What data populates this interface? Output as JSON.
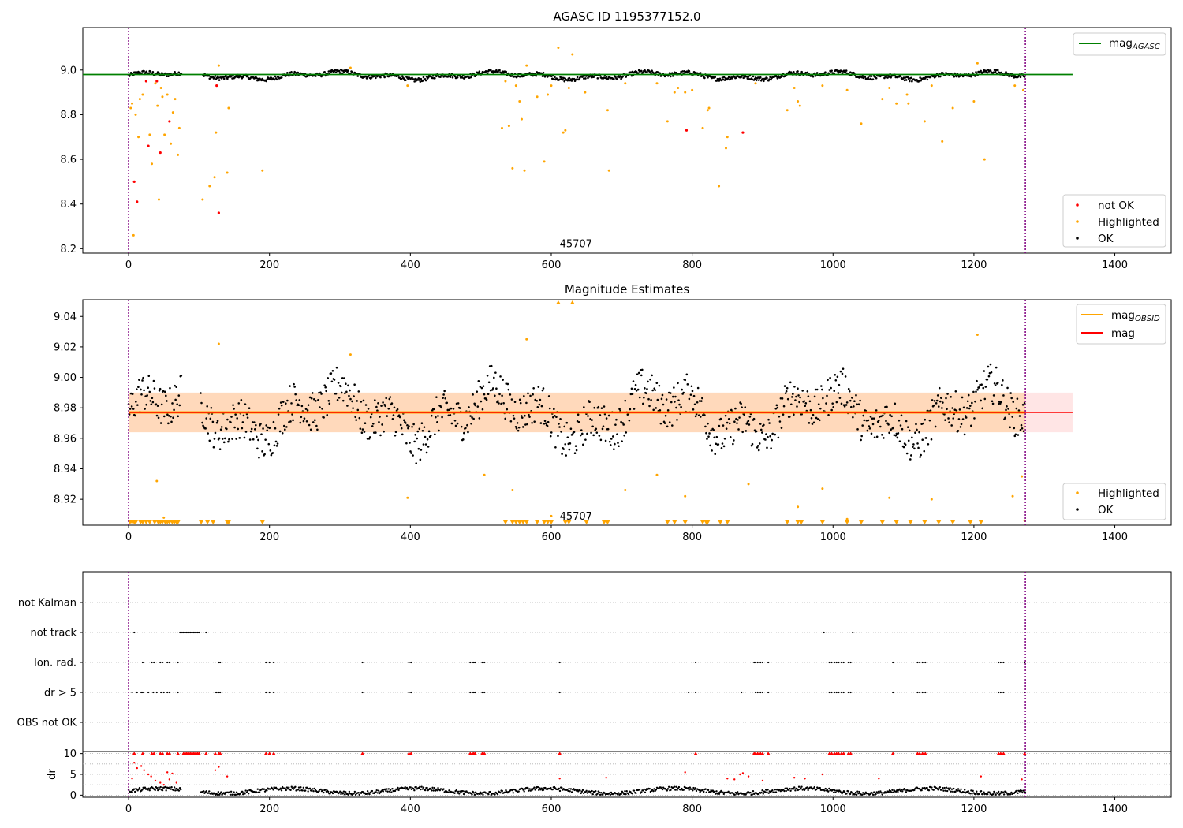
{
  "chart_data": [
    {
      "type": "scatter",
      "title": "AGASC ID 1195377152.0",
      "xlim": [
        -65,
        1480
      ],
      "ylim": [
        8.18,
        9.19
      ],
      "xticks": [
        0,
        200,
        400,
        600,
        800,
        1000,
        1200,
        1400
      ],
      "yticks": [
        8.2,
        8.4,
        8.6,
        8.8,
        9.0
      ],
      "ytick_labels": [
        "8.2",
        "8.4",
        "8.6",
        "8.8",
        "9.0"
      ],
      "vlines": [
        0,
        1273
      ],
      "obs_label": "45707",
      "obs_label_pos": [
        635,
        8.2
      ],
      "mag_agasc": 8.98,
      "mag_agasc_x": [
        -65,
        1340
      ],
      "legend_upper": {
        "label": "mag",
        "subscript": "AGASC",
        "color": "#008000"
      },
      "legend_lower": [
        {
          "label": "not OK",
          "color": "#ff0000"
        },
        {
          "label": "Highlighted",
          "color": "#ffa500"
        },
        {
          "label": "OK",
          "color": "#000000"
        }
      ],
      "series": [
        {
          "name": "not OK",
          "color": "#ff0000",
          "points": [
            [
              8,
              8.5
            ],
            [
              12,
              8.41
            ],
            [
              25,
              8.95
            ],
            [
              28,
              8.66
            ],
            [
              40,
              8.95
            ],
            [
              45,
              8.63
            ],
            [
              58,
              8.77
            ],
            [
              125,
              8.93
            ],
            [
              128,
              8.36
            ],
            [
              792,
              8.73
            ],
            [
              872,
              8.72
            ]
          ]
        },
        {
          "name": "Highlighted",
          "color": "#ffa500",
          "points": [
            [
              3,
              8.83
            ],
            [
              5,
              8.85
            ],
            [
              7,
              8.26
            ],
            [
              10,
              8.8
            ],
            [
              14,
              8.7
            ],
            [
              16,
              8.87
            ],
            [
              20,
              8.89
            ],
            [
              30,
              8.71
            ],
            [
              33,
              8.58
            ],
            [
              38,
              8.94
            ],
            [
              41,
              8.84
            ],
            [
              43,
              8.42
            ],
            [
              46,
              8.92
            ],
            [
              48,
              8.88
            ],
            [
              51,
              8.71
            ],
            [
              55,
              8.89
            ],
            [
              60,
              8.67
            ],
            [
              63,
              8.81
            ],
            [
              66,
              8.87
            ],
            [
              70,
              8.62
            ],
            [
              72,
              8.74
            ],
            [
              105,
              8.42
            ],
            [
              115,
              8.48
            ],
            [
              122,
              8.52
            ],
            [
              124,
              8.72
            ],
            [
              128,
              9.02
            ],
            [
              140,
              8.54
            ],
            [
              142,
              8.83
            ],
            [
              190,
              8.55
            ],
            [
              315,
              9.01
            ],
            [
              396,
              8.93
            ],
            [
              530,
              8.74
            ],
            [
              535,
              8.95
            ],
            [
              540,
              8.75
            ],
            [
              545,
              8.56
            ],
            [
              550,
              8.93
            ],
            [
              555,
              8.86
            ],
            [
              558,
              8.78
            ],
            [
              562,
              8.55
            ],
            [
              565,
              9.02
            ],
            [
              580,
              8.88
            ],
            [
              590,
              8.59
            ],
            [
              595,
              8.89
            ],
            [
              600,
              8.93
            ],
            [
              610,
              9.1
            ],
            [
              617,
              8.72
            ],
            [
              620,
              8.73
            ],
            [
              625,
              8.92
            ],
            [
              630,
              9.07
            ],
            [
              648,
              8.9
            ],
            [
              680,
              8.82
            ],
            [
              682,
              8.55
            ],
            [
              705,
              8.94
            ],
            [
              750,
              8.94
            ],
            [
              765,
              8.77
            ],
            [
              775,
              8.9
            ],
            [
              780,
              8.92
            ],
            [
              790,
              8.9
            ],
            [
              800,
              8.91
            ],
            [
              815,
              8.74
            ],
            [
              822,
              8.82
            ],
            [
              824,
              8.83
            ],
            [
              838,
              8.48
            ],
            [
              848,
              8.65
            ],
            [
              850,
              8.7
            ],
            [
              890,
              8.94
            ],
            [
              935,
              8.82
            ],
            [
              945,
              8.92
            ],
            [
              950,
              8.86
            ],
            [
              953,
              8.84
            ],
            [
              985,
              8.93
            ],
            [
              1020,
              8.91
            ],
            [
              1040,
              8.76
            ],
            [
              1070,
              8.87
            ],
            [
              1080,
              8.92
            ],
            [
              1090,
              8.85
            ],
            [
              1105,
              8.89
            ],
            [
              1107,
              8.85
            ],
            [
              1130,
              8.77
            ],
            [
              1140,
              8.93
            ],
            [
              1155,
              8.68
            ],
            [
              1170,
              8.83
            ],
            [
              1200,
              8.86
            ],
            [
              1205,
              9.03
            ],
            [
              1215,
              8.6
            ],
            [
              1258,
              8.93
            ],
            [
              1270,
              8.91
            ]
          ]
        },
        {
          "name": "OK",
          "color": "#000000",
          "generated_band": [
            8.93,
            9.01
          ]
        }
      ]
    },
    {
      "type": "scatter",
      "title": "Magnitude Estimates",
      "xlim": [
        -65,
        1480
      ],
      "ylim": [
        8.903,
        9.051
      ],
      "xticks": [
        0,
        200,
        400,
        600,
        800,
        1000,
        1200,
        1400
      ],
      "yticks": [
        8.92,
        8.94,
        8.96,
        8.98,
        9.0,
        9.02,
        9.04
      ],
      "ytick_labels": [
        "8.92",
        "8.94",
        "8.96",
        "8.98",
        "9.00",
        "9.02",
        "9.04"
      ],
      "vlines": [
        0,
        1273
      ],
      "obs_label": "45707",
      "obs_label_pos": [
        635,
        8.904
      ],
      "mag": 8.977,
      "mag_x": [
        0,
        1273
      ],
      "mag_obsid": 8.977,
      "band_inner": [
        8.964,
        8.99
      ],
      "band_inner_x": [
        0,
        1273
      ],
      "band_outer": [
        8.964,
        8.99
      ],
      "band_outer_x": [
        0,
        1340
      ],
      "legend_upper": [
        {
          "label": "mag",
          "subscript": "OBSID",
          "color": "#ffa500"
        },
        {
          "label": "mag",
          "subscript": "",
          "color": "#ff0000"
        }
      ],
      "legend_lower": [
        {
          "label": "Highlighted",
          "color": "#ffa500"
        },
        {
          "label": "OK",
          "color": "#000000"
        }
      ],
      "highlighted_points": [
        [
          40,
          8.932
        ],
        [
          50,
          8.908
        ],
        [
          128,
          9.022
        ],
        [
          315,
          9.015
        ],
        [
          396,
          8.921
        ],
        [
          505,
          8.936
        ],
        [
          545,
          8.926
        ],
        [
          565,
          9.025
        ],
        [
          600,
          8.909
        ],
        [
          705,
          8.926
        ],
        [
          750,
          8.936
        ],
        [
          790,
          8.922
        ],
        [
          880,
          8.93
        ],
        [
          950,
          8.915
        ],
        [
          985,
          8.927
        ],
        [
          1020,
          8.907
        ],
        [
          1080,
          8.921
        ],
        [
          1140,
          8.92
        ],
        [
          1205,
          9.028
        ],
        [
          1255,
          8.922
        ],
        [
          1268,
          8.935
        ],
        [
          1272,
          8.906
        ]
      ],
      "offscale_high": [
        610,
        630
      ],
      "offscale_low": [
        2,
        5,
        8,
        10,
        17,
        20,
        25,
        30,
        37,
        42,
        45,
        48,
        52,
        55,
        58,
        62,
        65,
        68,
        70,
        103,
        112,
        120,
        140,
        142,
        190,
        535,
        545,
        550,
        555,
        560,
        565,
        580,
        590,
        595,
        600,
        620,
        625,
        650,
        675,
        680,
        765,
        775,
        790,
        815,
        820,
        822,
        840,
        850,
        935,
        950,
        955,
        985,
        1020,
        1040,
        1070,
        1090,
        1110,
        1130,
        1150,
        1170,
        1195,
        1210
      ]
    },
    {
      "type": "scatter",
      "title": "",
      "xlim": [
        -65,
        1480
      ],
      "category_labels": [
        "not Kalman",
        "not track",
        "Ion. rad.",
        "dr > 5",
        "OBS not OK"
      ],
      "vlines": [
        0,
        1273
      ],
      "flags": {
        "not track": [
          8,
          73,
          76,
          78,
          80,
          82,
          84,
          86,
          88,
          90,
          92,
          94,
          96,
          98,
          100,
          110,
          987,
          1028
        ],
        "Ion. rad.": [
          20,
          33,
          36,
          45,
          48,
          55,
          58,
          70,
          128,
          130,
          195,
          200,
          206,
          332,
          398,
          401,
          485,
          488,
          490,
          492,
          502,
          505,
          612,
          805,
          888,
          890,
          893,
          897,
          900,
          908,
          995,
          998,
          1002,
          1005,
          1008,
          1012,
          1015,
          1022,
          1025,
          1085,
          1120,
          1123,
          1127,
          1131,
          1235,
          1238,
          1242,
          1272
        ],
        "dr > 5": [
          5,
          12,
          18,
          20,
          28,
          35,
          40,
          46,
          50,
          55,
          58,
          70,
          123,
          125,
          128,
          130,
          195,
          200,
          206,
          332,
          398,
          401,
          485,
          488,
          490,
          492,
          502,
          505,
          612,
          795,
          805,
          870,
          890,
          893,
          897,
          900,
          908,
          995,
          998,
          1002,
          1005,
          1008,
          1012,
          1015,
          1022,
          1025,
          1085,
          1120,
          1123,
          1127,
          1131,
          1235,
          1238,
          1242,
          1272
        ]
      }
    },
    {
      "type": "scatter",
      "title": "",
      "ylabel": "dr",
      "xlim": [
        -65,
        1480
      ],
      "ylim": [
        -0.5,
        10.5
      ],
      "xticks": [
        0,
        200,
        400,
        600,
        800,
        1000,
        1200,
        1400
      ],
      "yticks": [
        0,
        5,
        10
      ],
      "ytick_labels": [
        "0",
        "5",
        "10"
      ],
      "vlines": [
        0,
        1273
      ],
      "red_triangles": [
        8,
        20,
        33,
        36,
        45,
        48,
        55,
        58,
        70,
        78,
        80,
        82,
        84,
        86,
        88,
        90,
        92,
        94,
        96,
        98,
        100,
        110,
        123,
        128,
        130,
        195,
        200,
        206,
        332,
        398,
        401,
        485,
        488,
        490,
        492,
        502,
        505,
        612,
        805,
        888,
        890,
        893,
        897,
        900,
        908,
        995,
        998,
        1002,
        1005,
        1008,
        1012,
        1015,
        1022,
        1025,
        1085,
        1120,
        1123,
        1127,
        1131,
        1235,
        1238,
        1242,
        1272
      ],
      "red_points": [
        [
          5,
          4
        ],
        [
          8,
          7.8
        ],
        [
          12,
          6.5
        ],
        [
          18,
          7
        ],
        [
          22,
          6
        ],
        [
          28,
          5
        ],
        [
          32,
          4.5
        ],
        [
          38,
          3.5
        ],
        [
          45,
          3
        ],
        [
          50,
          2.5
        ],
        [
          55,
          5.5
        ],
        [
          58,
          3.8
        ],
        [
          62,
          5.2
        ],
        [
          68,
          3
        ],
        [
          123,
          6
        ],
        [
          128,
          6.8
        ],
        [
          140,
          4.5
        ],
        [
          612,
          4
        ],
        [
          678,
          4.2
        ],
        [
          790,
          5.5
        ],
        [
          850,
          4
        ],
        [
          860,
          3.8
        ],
        [
          868,
          5
        ],
        [
          872,
          5.3
        ],
        [
          880,
          4.5
        ],
        [
          900,
          3.5
        ],
        [
          945,
          4.2
        ],
        [
          960,
          4
        ],
        [
          985,
          5
        ],
        [
          1065,
          4
        ],
        [
          1210,
          4.5
        ],
        [
          1268,
          3.8
        ]
      ],
      "black_band": [
        0.3,
        2.0
      ]
    }
  ]
}
